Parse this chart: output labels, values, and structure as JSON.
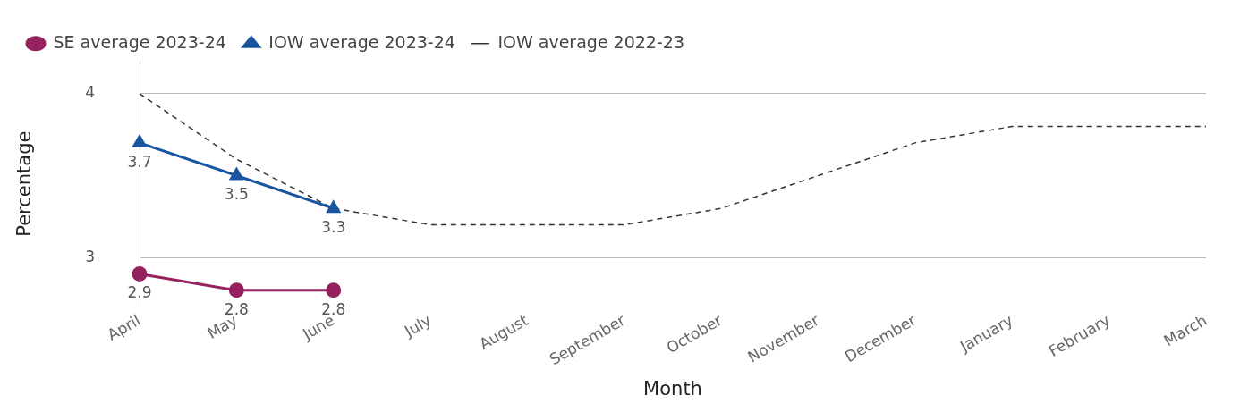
{
  "chart_data": {
    "type": "line",
    "xlabel": "Month",
    "ylabel": "Percentage",
    "categories": [
      "April",
      "May",
      "June",
      "July",
      "August",
      "September",
      "October",
      "November",
      "December",
      "January",
      "February",
      "March"
    ],
    "series": [
      {
        "name": "SE average 2023-24",
        "color": "#95215f",
        "marker": "circle",
        "line_style": "solid",
        "values": [
          2.9,
          2.8,
          2.8,
          null,
          null,
          null,
          null,
          null,
          null,
          null,
          null,
          null
        ],
        "value_labels": [
          "2.9",
          "2.8",
          "2.8",
          null,
          null,
          null,
          null,
          null,
          null,
          null,
          null,
          null
        ]
      },
      {
        "name": "IOW average 2023-24",
        "color": "#1a56a0",
        "marker": "triangle",
        "line_style": "solid",
        "values": [
          3.7,
          3.5,
          3.3,
          null,
          null,
          null,
          null,
          null,
          null,
          null,
          null,
          null
        ],
        "value_labels": [
          "3.7",
          "3.5",
          "3.3",
          null,
          null,
          null,
          null,
          null,
          null,
          null,
          null,
          null
        ]
      },
      {
        "name": "IOW average 2022-23",
        "color": "#333333",
        "marker": "none",
        "line_style": "dashed",
        "values": [
          4.0,
          3.6,
          3.3,
          3.2,
          3.2,
          3.2,
          3.3,
          3.5,
          3.7,
          3.8,
          3.8,
          3.8
        ]
      }
    ],
    "ylim": [
      2.7,
      4.2
    ],
    "yticks": [
      3,
      4
    ],
    "grid": "y",
    "legend": "top left"
  }
}
